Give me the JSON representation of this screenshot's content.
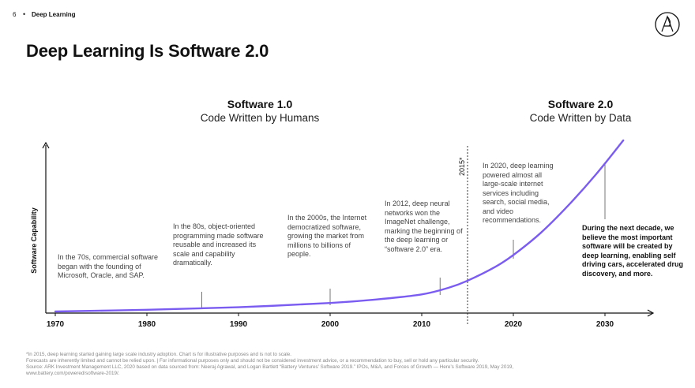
{
  "header": {
    "page_number": "6",
    "separator": "•",
    "section": "Deep Learning"
  },
  "title": "Deep Learning Is Software 2.0",
  "eras": [
    {
      "name": "Software 1.0",
      "subtitle": "Code Written by Humans"
    },
    {
      "name": "Software 2.0",
      "subtitle": "Code Written by Data"
    }
  ],
  "colors": {
    "curve": "#7b5cf0",
    "text": "#111111",
    "muted": "#444444"
  },
  "chart_data": {
    "type": "line",
    "ylabel": "Software Capability",
    "xlabel": "",
    "x_ticks": [
      "1970",
      "1980",
      "1990",
      "2000",
      "2010",
      "2020",
      "2030"
    ],
    "xlim": [
      1970,
      2030
    ],
    "marker": {
      "year": 2015,
      "label": "2015*"
    },
    "series": [
      {
        "x": [
          1970,
          1980,
          1990,
          2000,
          2005,
          2010,
          2013,
          2015,
          2018,
          2020,
          2023,
          2026,
          2029,
          2032
        ],
        "y": [
          0.0,
          0.01,
          0.025,
          0.05,
          0.07,
          0.1,
          0.14,
          0.18,
          0.26,
          0.33,
          0.46,
          0.62,
          0.8,
          1.0
        ]
      }
    ],
    "annotations": [
      {
        "x": 1970,
        "text": "In the 70s, commercial software began with the founding of Microsoft, Oracle, and SAP."
      },
      {
        "x": 1986,
        "text": "In the 80s, object-oriented programming made software reusable and increased its scale and capability dramatically."
      },
      {
        "x": 2000,
        "text": "In the 2000s, the Internet democratized software, growing the market from millions to billions of people."
      },
      {
        "x": 2012,
        "text": "In 2012, deep neural networks won the ImageNet challenge, marking the beginning of the deep learning or “software 2.0” era."
      },
      {
        "x": 2020,
        "text": "In 2020, deep learning powered almost all large-scale internet services including search, social media, and video recommendations."
      },
      {
        "x": 2030,
        "text": "During the next decade, we believe the most important software will be created by deep learning, enabling self driving cars, accelerated drug discovery, and more."
      }
    ],
    "grid": false
  },
  "footer": [
    "*In 2015, deep learning started gaining large scale industry adoption. Chart is for illustrative purposes and is not to scale.",
    "Forecasts are inherently limited and cannot be relied upon. | For informational purposes only and should not be considered investment advice, or a recommendation to buy, sell or hold any particular security.",
    "Source: ARK Investment Management LLC, 2020 based on data sourced from: Neeraj Agrawal, and Logan Bartlett “Battery Ventures’ Software 2019.” IPOs, M&A, and Forces of Growth — Here’s Software 2019, May 2019,",
    "www.battery.com/powered/software-2019/."
  ]
}
